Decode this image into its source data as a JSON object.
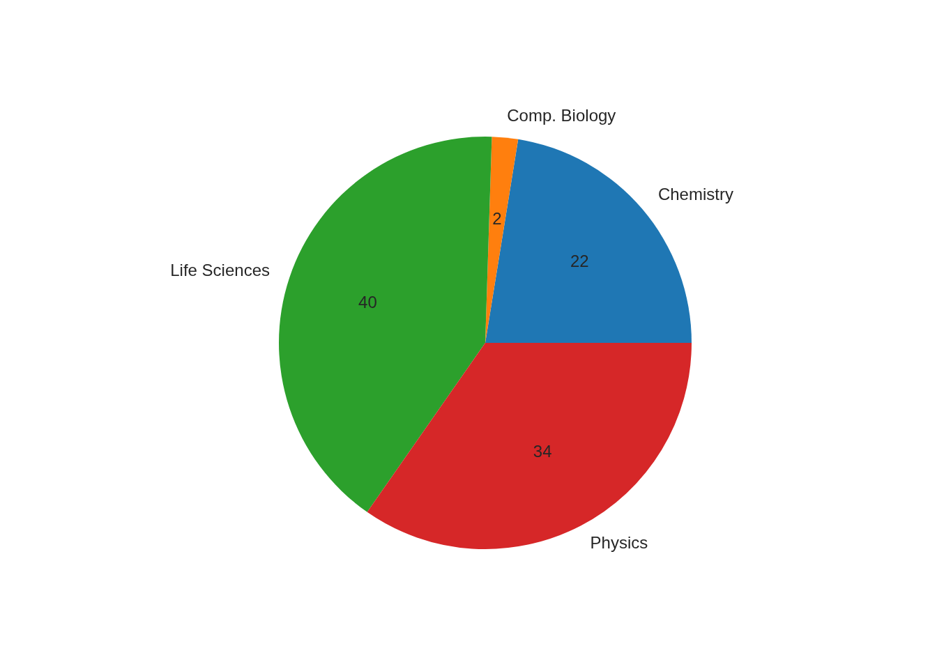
{
  "chart_data": {
    "type": "pie",
    "categories": [
      "Chemistry",
      "Comp. Biology",
      "Life Sciences",
      "Physics"
    ],
    "values": [
      22,
      2,
      40,
      34
    ],
    "colors": [
      "#1f77b4",
      "#ff7f0e",
      "#2ca02c",
      "#d62728"
    ],
    "data_labels": true
  }
}
